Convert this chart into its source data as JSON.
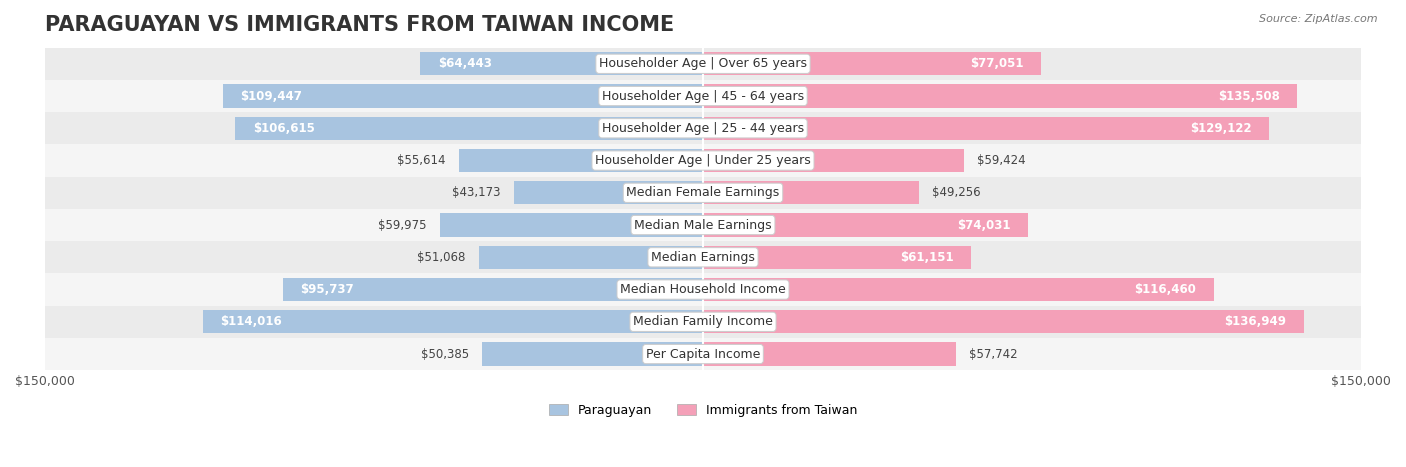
{
  "title": "PARAGUAYAN VS IMMIGRANTS FROM TAIWAN INCOME",
  "source": "Source: ZipAtlas.com",
  "categories": [
    "Per Capita Income",
    "Median Family Income",
    "Median Household Income",
    "Median Earnings",
    "Median Male Earnings",
    "Median Female Earnings",
    "Householder Age | Under 25 years",
    "Householder Age | 25 - 44 years",
    "Householder Age | 45 - 64 years",
    "Householder Age | Over 65 years"
  ],
  "paraguayan_values": [
    50385,
    114016,
    95737,
    51068,
    59975,
    43173,
    55614,
    106615,
    109447,
    64443
  ],
  "taiwan_values": [
    57742,
    136949,
    116460,
    61151,
    74031,
    49256,
    59424,
    129122,
    135508,
    77051
  ],
  "paraguayan_color": "#a8c4e0",
  "taiwan_color": "#f4a0b8",
  "paraguayan_fill_color": "#7bafd4",
  "taiwan_fill_color": "#f07ca0",
  "bar_bg_color": "#f0f0f0",
  "row_bg_colors": [
    "#f5f5f5",
    "#ebebeb"
  ],
  "max_value": 150000,
  "xlabel_left": "$150,000",
  "xlabel_right": "$150,000",
  "legend_paraguayan": "Paraguayan",
  "legend_taiwan": "Immigrants from Taiwan",
  "title_fontsize": 15,
  "label_fontsize": 9,
  "value_fontsize": 8.5,
  "figsize": [
    14.06,
    4.67
  ],
  "dpi": 100
}
